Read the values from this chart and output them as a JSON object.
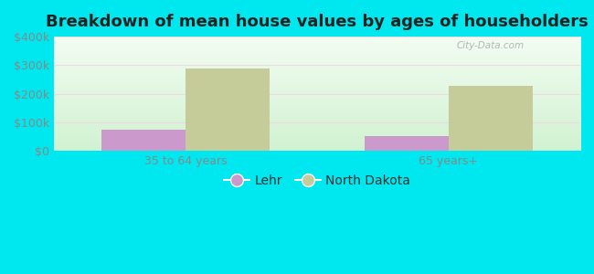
{
  "title": "Breakdown of mean house values by ages of householders",
  "categories": [
    "35 to 64 years",
    "65 years+"
  ],
  "lehr_values": [
    75000,
    50000
  ],
  "nd_values": [
    287000,
    228000
  ],
  "lehr_color": "#cc99cc",
  "nd_color": "#c5cc99",
  "background_outer": "#00e8ef",
  "ylim": [
    0,
    400000
  ],
  "yticks": [
    0,
    100000,
    200000,
    300000,
    400000
  ],
  "ytick_labels": [
    "$0",
    "$100k",
    "$200k",
    "$300k",
    "$400k"
  ],
  "legend_labels": [
    "Lehr",
    "North Dakota"
  ],
  "bar_width": 0.32,
  "watermark": "City-Data.com",
  "title_fontsize": 13,
  "tick_fontsize": 9,
  "legend_fontsize": 10,
  "grid_color": "#e0e8e0",
  "tick_color": "#888888"
}
